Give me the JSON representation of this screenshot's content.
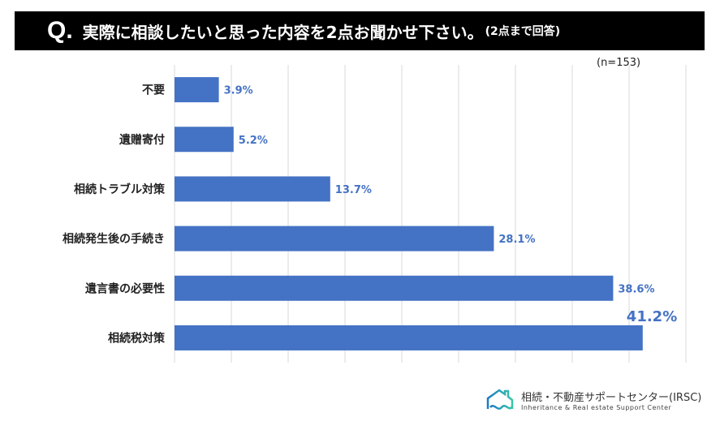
{
  "title": {
    "q": "Q.",
    "text": "実際に相談したいと思った内容を2点お聞かせ下さい。",
    "note": "(2点まで回答)"
  },
  "n_label": "(n=153)",
  "chart_data": {
    "type": "bar",
    "orientation": "horizontal",
    "categories": [
      "不要",
      "遺贈寄付",
      "相続トラブル対策",
      "相続発生後の手続き",
      "遺言書の必要性",
      "相続税対策"
    ],
    "values": [
      3.9,
      5.2,
      13.7,
      28.1,
      38.6,
      41.2
    ],
    "labels": [
      "3.9%",
      "5.2%",
      "13.7%",
      "28.1%",
      "38.6%",
      "41.2%"
    ],
    "xlim": [
      0,
      45
    ],
    "grid_step": 5,
    "grid": true,
    "bar_color": "#4472C4",
    "label_color": "#4472C4"
  },
  "logo": {
    "name": "相続・不動産サポートセンター(IRSC)",
    "sub": "Inheritance & Real estate Support Center"
  }
}
